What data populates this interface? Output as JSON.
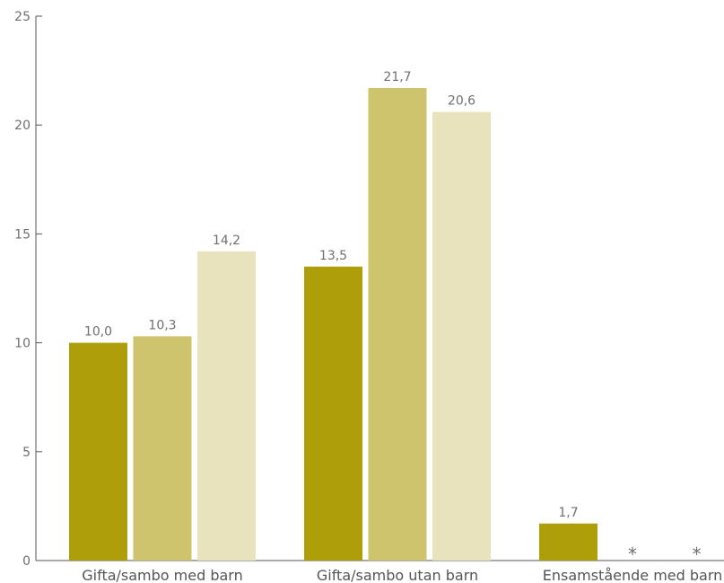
{
  "chart_data": {
    "type": "bar",
    "categories": [
      "Gifta/sambo med barn",
      "Gifta/sambo utan barn",
      "Ensamstående med barn"
    ],
    "series": [
      {
        "values": [
          10.0,
          13.5,
          1.7
        ],
        "labels": [
          "10,0",
          "13,5",
          "1,7"
        ],
        "color": "#ae9f0a"
      },
      {
        "values": [
          10.3,
          21.7,
          null
        ],
        "labels": [
          "10,3",
          "21,7",
          "*"
        ],
        "color": "#cec46e"
      },
      {
        "values": [
          14.2,
          20.6,
          null
        ],
        "labels": [
          "14,2",
          "20,6",
          "*"
        ],
        "color": "#e8e3bc"
      }
    ],
    "ylim": [
      0,
      25
    ],
    "yticks": [
      0,
      5,
      10,
      15,
      20,
      25
    ],
    "ytick_labels": [
      "0",
      "5",
      "10",
      "15",
      "20",
      "25"
    ],
    "xlabel": "",
    "ylabel": "",
    "title": "",
    "grid": false,
    "legend": false,
    "axis_color": "#555555"
  }
}
